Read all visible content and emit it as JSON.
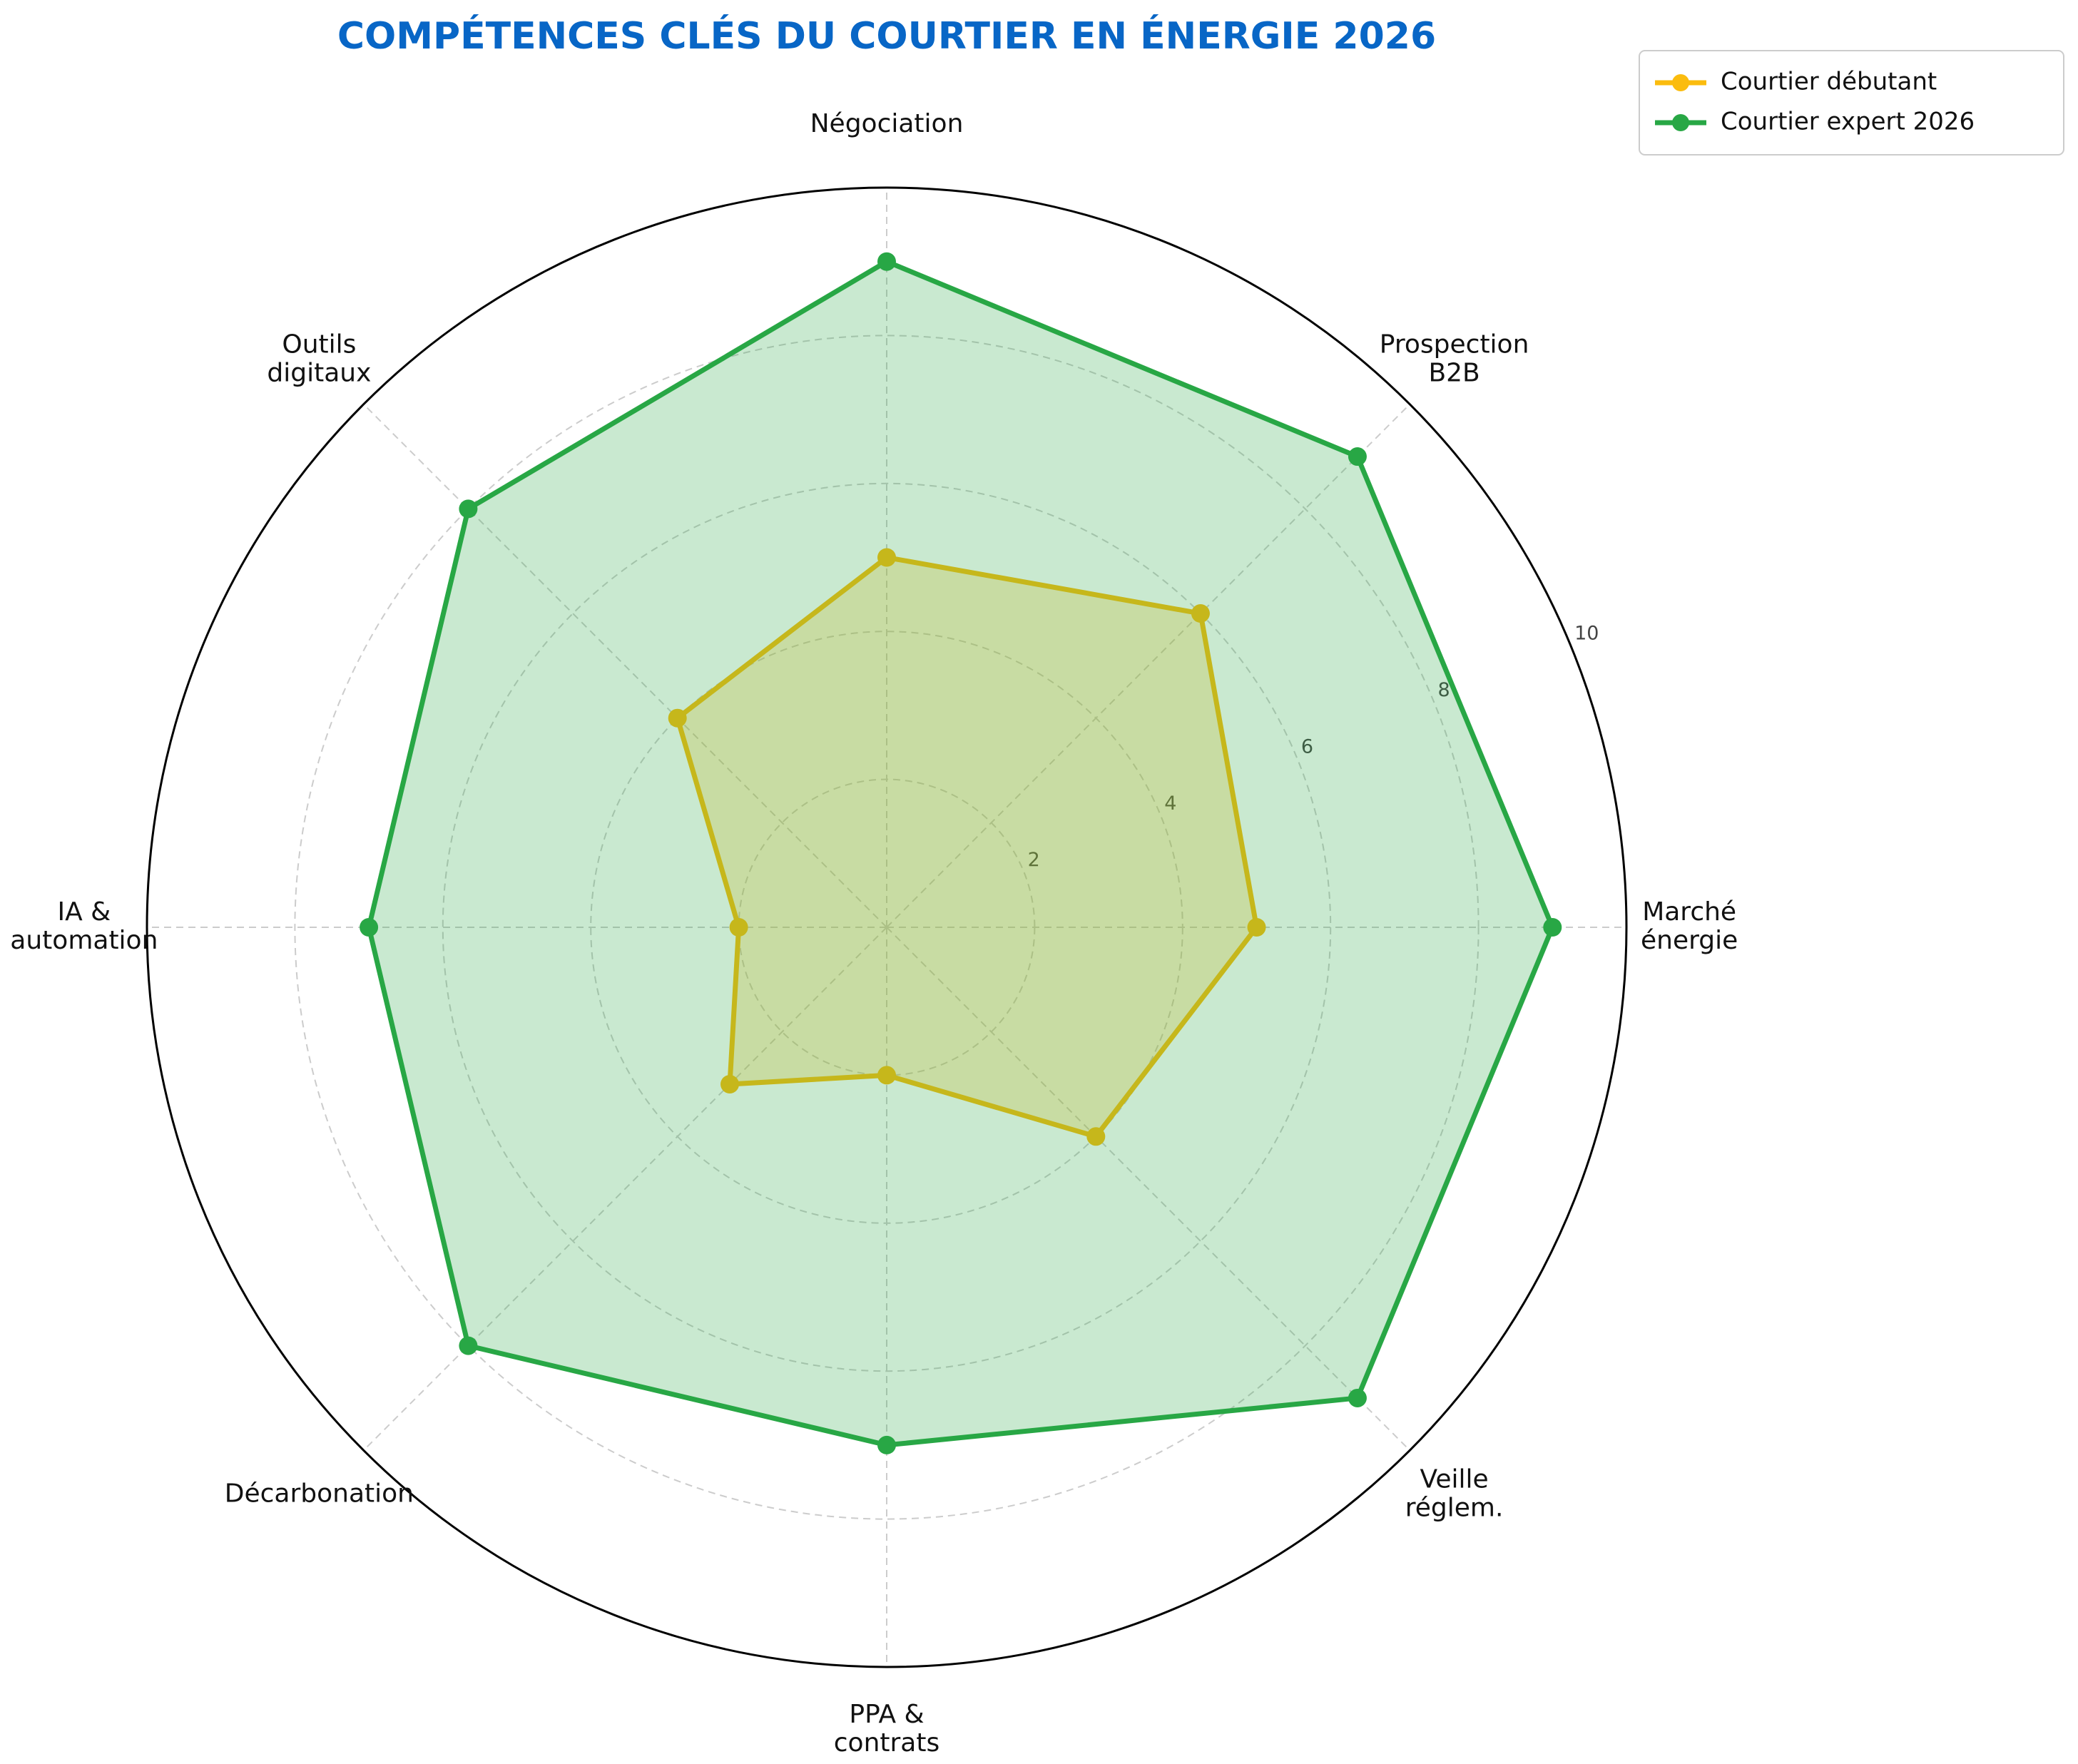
{
  "chart_data": {
    "type": "radar",
    "title": "COMPÉTENCES CLÉS DU COURTIER EN ÉNERGIE 2026",
    "categories": [
      "Marché\nénergie",
      "Prospection\nB2B",
      "Négociation",
      "Outils\ndigitaux",
      "IA &\nautomation",
      "Décarbonation",
      "PPA &\ncontrats",
      "Veille\nréglem."
    ],
    "series": [
      {
        "name": "Courtier débutant",
        "color": "#fbbc0e",
        "values": [
          5,
          6,
          5,
          4,
          2,
          3,
          2,
          4
        ]
      },
      {
        "name": "Courtier expert 2026",
        "color": "#28a745",
        "values": [
          9,
          9,
          9,
          8,
          7,
          8,
          7,
          9
        ]
      }
    ],
    "ylim": [
      0,
      10
    ],
    "yticks": [
      2,
      4,
      6,
      8,
      10
    ],
    "grid": true,
    "legend": "upper right"
  }
}
